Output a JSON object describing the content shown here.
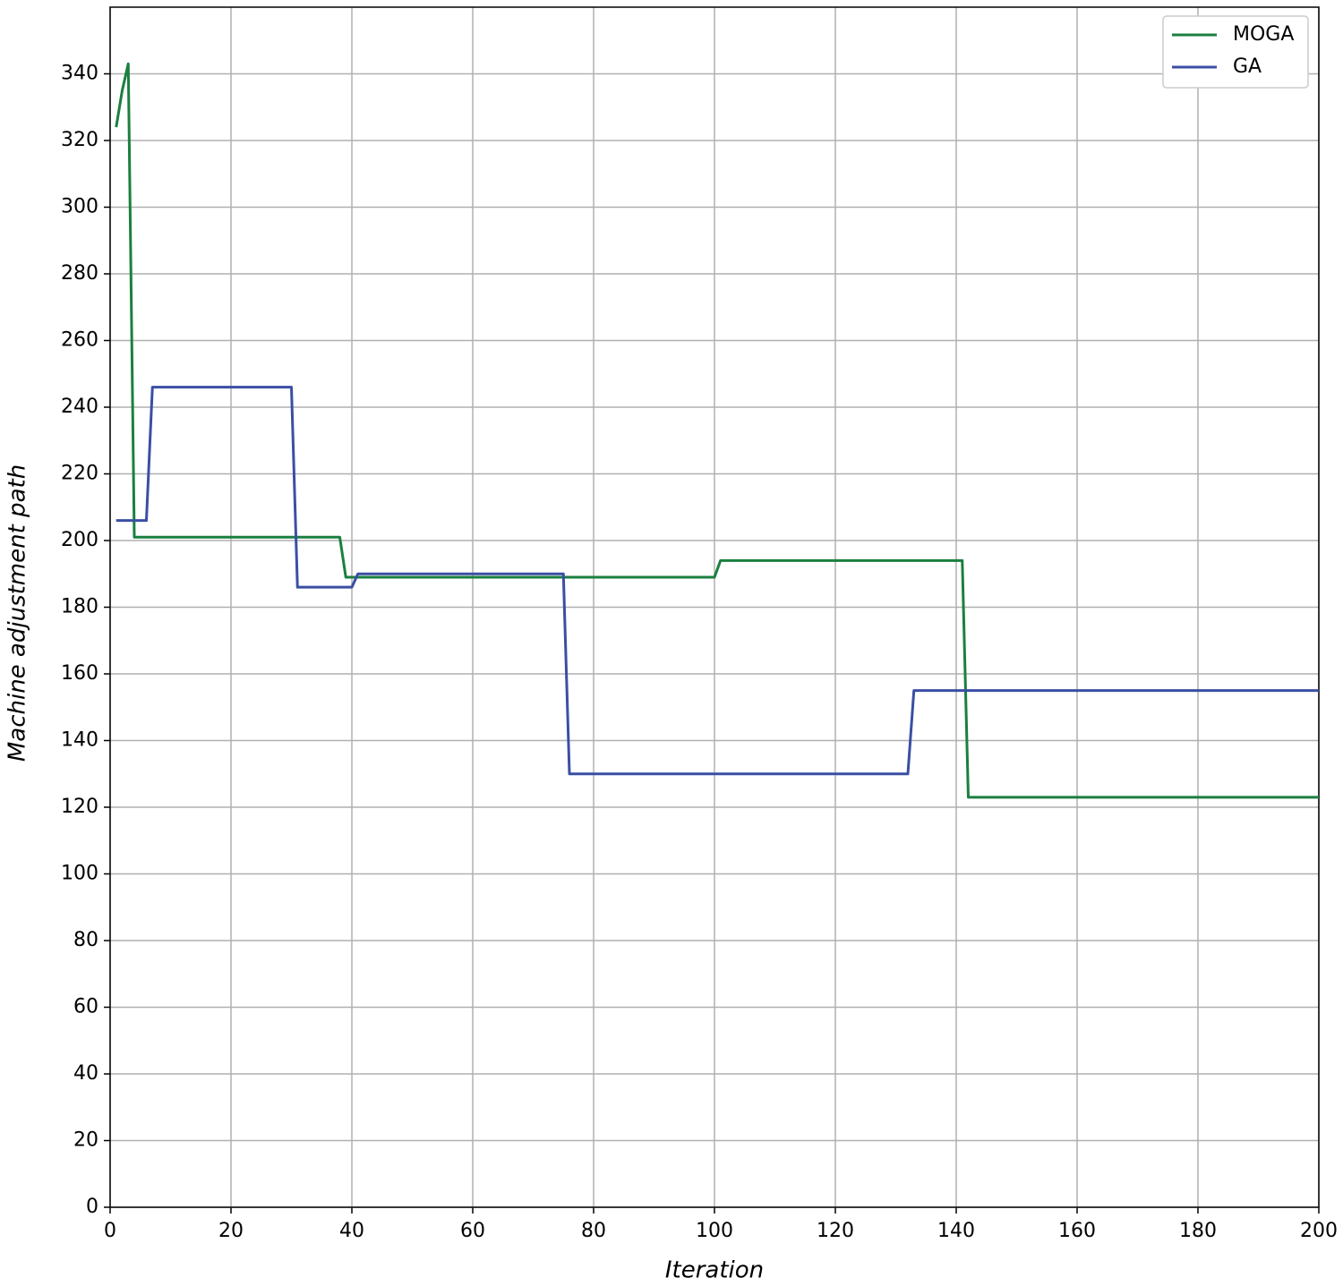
{
  "chart_data": {
    "type": "line",
    "x_label": "Iteration",
    "y_label": "Machine adjustment path",
    "xlim": [
      0,
      200
    ],
    "xticks": [
      0,
      20,
      40,
      60,
      80,
      100,
      120,
      140,
      160,
      180,
      200
    ],
    "ylim": [
      0,
      360
    ],
    "yticks": [
      0,
      20,
      40,
      60,
      80,
      100,
      120,
      140,
      160,
      180,
      200,
      220,
      240,
      260,
      280,
      300,
      320,
      340
    ],
    "grid": true,
    "legend": "upper right",
    "series": [
      {
        "name": "MOGA",
        "color": "#1b7f3f",
        "x": [
          1,
          2,
          3,
          4,
          38,
          39,
          100,
          101,
          141,
          142,
          200
        ],
        "values": [
          324,
          335,
          343,
          201,
          201,
          189,
          189,
          194,
          194,
          123,
          123
        ]
      },
      {
        "name": "GA",
        "color": "#3a4fa3",
        "x": [
          1,
          6,
          7,
          30,
          31,
          40,
          41,
          75,
          76,
          132,
          133,
          200
        ],
        "values": [
          206,
          206,
          246,
          246,
          186,
          186,
          190,
          190,
          130,
          130,
          155,
          155
        ]
      }
    ]
  }
}
